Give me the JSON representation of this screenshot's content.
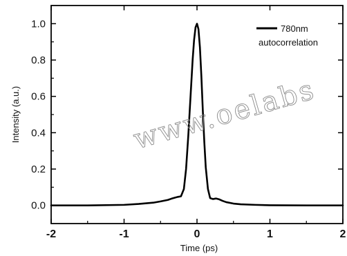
{
  "chart_data": {
    "type": "line",
    "xlabel": "Time (ps)",
    "ylabel": "Intensity (a.u.)",
    "xlim": [
      -2,
      2
    ],
    "ylim": [
      -0.1,
      1.1
    ],
    "x_ticks": [
      "-2",
      "-1",
      "0",
      "1",
      "2"
    ],
    "x_tick_values": [
      -2,
      -1,
      0,
      1,
      2
    ],
    "y_ticks": [
      "0.0",
      "0.2",
      "0.4",
      "0.6",
      "0.8",
      "1.0"
    ],
    "y_tick_values": [
      0.0,
      0.2,
      0.4,
      0.6,
      0.8,
      1.0
    ],
    "grid": false,
    "legend_position": "top-right",
    "series": [
      {
        "name": "780nm autocorrelation",
        "color": "#000000",
        "x": [
          -2.0,
          -1.5,
          -1.0,
          -0.8,
          -0.6,
          -0.5,
          -0.4,
          -0.35,
          -0.3,
          -0.26,
          -0.22,
          -0.18,
          -0.15,
          -0.12,
          -0.1,
          -0.08,
          -0.06,
          -0.04,
          -0.02,
          0.0,
          0.02,
          0.04,
          0.06,
          0.08,
          0.1,
          0.12,
          0.15,
          0.18,
          0.22,
          0.26,
          0.3,
          0.35,
          0.4,
          0.5,
          0.6,
          0.8,
          1.0,
          1.5,
          2.0
        ],
        "y": [
          0.0,
          0.0,
          0.003,
          0.008,
          0.015,
          0.022,
          0.03,
          0.037,
          0.043,
          0.047,
          0.05,
          0.09,
          0.2,
          0.38,
          0.52,
          0.66,
          0.8,
          0.91,
          0.98,
          1.0,
          0.97,
          0.87,
          0.71,
          0.52,
          0.35,
          0.21,
          0.09,
          0.04,
          0.035,
          0.038,
          0.034,
          0.025,
          0.018,
          0.01,
          0.006,
          0.003,
          0.001,
          0.0,
          0.0
        ]
      }
    ]
  },
  "watermark": "www.oelabs"
}
